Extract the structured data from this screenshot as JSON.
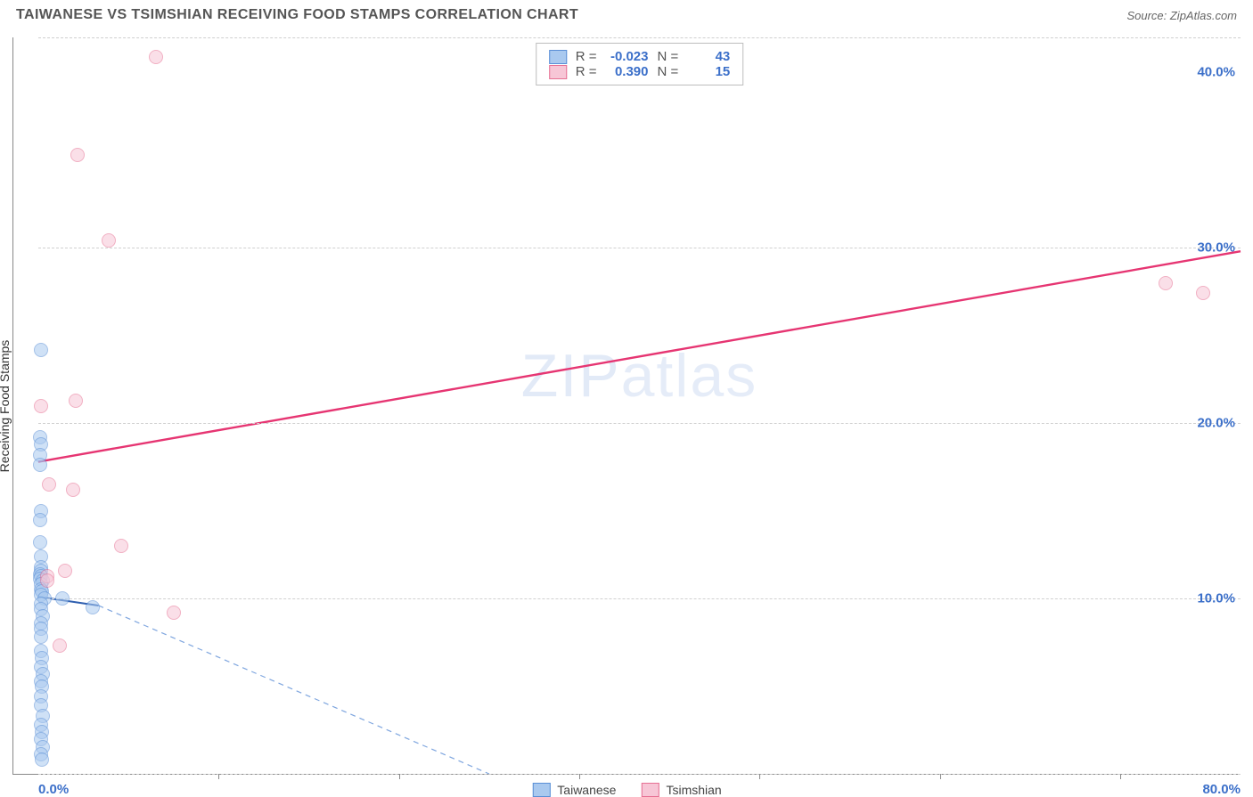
{
  "title": "TAIWANESE VS TSIMSHIAN RECEIVING FOOD STAMPS CORRELATION CHART",
  "source_label": "Source: ZipAtlas.com",
  "ylabel": "Receiving Food Stamps",
  "watermark": "ZIPatlas",
  "chart": {
    "type": "scatter",
    "xlim": [
      0,
      80
    ],
    "ylim": [
      0,
      42
    ],
    "xticks": [
      0,
      80
    ],
    "xtick_minor": [
      12,
      24,
      36,
      48,
      60,
      72
    ],
    "yticks": [
      10,
      20,
      30,
      40
    ],
    "ytick_labels": [
      "10.0%",
      "20.0%",
      "30.0%",
      "40.0%"
    ],
    "xtick_labels": [
      "0.0%",
      "80.0%"
    ],
    "grid_dashed_y": [
      0,
      10,
      20,
      30,
      42
    ],
    "background_color": "#ffffff",
    "grid_color": "#d0d0d0",
    "axis_color": "#888888",
    "label_color": "#3b6fc9",
    "marker_radius": 8,
    "marker_border_width": 1.2
  },
  "series": [
    {
      "name": "Taiwanese",
      "fill_color": "#a9c9ef",
      "fill_opacity": 0.55,
      "border_color": "#5a8fd6",
      "stats": {
        "R_label": "R =",
        "R": "-0.023",
        "N_label": "N =",
        "N": "43"
      },
      "regression": {
        "x1": 0,
        "y1": 10.1,
        "x2": 4,
        "y2": 9.6,
        "color": "#2f5fb0",
        "width": 2,
        "dash": "0"
      },
      "extrapolation": {
        "x1": 4,
        "y1": 9.6,
        "x2": 30,
        "y2": 0,
        "color": "#7fa6df",
        "width": 1.2,
        "dash": "6,5"
      },
      "points": [
        [
          0.2,
          24.2
        ],
        [
          0.1,
          19.2
        ],
        [
          0.2,
          18.8
        ],
        [
          0.1,
          18.2
        ],
        [
          0.1,
          17.6
        ],
        [
          0.2,
          15.0
        ],
        [
          0.1,
          14.5
        ],
        [
          0.1,
          13.2
        ],
        [
          0.2,
          12.4
        ],
        [
          0.15,
          11.8
        ],
        [
          0.2,
          11.6
        ],
        [
          0.1,
          11.4
        ],
        [
          0.2,
          11.3
        ],
        [
          0.1,
          11.1
        ],
        [
          0.3,
          11.0
        ],
        [
          0.2,
          10.8
        ],
        [
          0.15,
          10.5
        ],
        [
          0.25,
          10.4
        ],
        [
          0.2,
          10.2
        ],
        [
          0.4,
          10.0
        ],
        [
          0.2,
          9.7
        ],
        [
          0.15,
          9.4
        ],
        [
          0.3,
          9.0
        ],
        [
          1.6,
          10.0
        ],
        [
          3.6,
          9.5
        ],
        [
          0.2,
          8.6
        ],
        [
          0.15,
          8.3
        ],
        [
          0.2,
          7.8
        ],
        [
          0.15,
          7.0
        ],
        [
          0.25,
          6.6
        ],
        [
          0.2,
          6.1
        ],
        [
          0.3,
          5.7
        ],
        [
          0.15,
          5.3
        ],
        [
          0.25,
          5.0
        ],
        [
          0.2,
          4.4
        ],
        [
          0.2,
          3.9
        ],
        [
          0.3,
          3.3
        ],
        [
          0.2,
          2.8
        ],
        [
          0.25,
          2.4
        ],
        [
          0.2,
          2.0
        ],
        [
          0.3,
          1.5
        ],
        [
          0.2,
          1.1
        ],
        [
          0.25,
          0.8
        ]
      ]
    },
    {
      "name": "Tsimshian",
      "fill_color": "#f7c6d6",
      "fill_opacity": 0.55,
      "border_color": "#e67093",
      "stats": {
        "R_label": "R =",
        "R": "0.390",
        "N_label": "N =",
        "N": "15"
      },
      "regression": {
        "x1": 0,
        "y1": 17.8,
        "x2": 80,
        "y2": 29.8,
        "color": "#e63572",
        "width": 2.4,
        "dash": "0"
      },
      "points": [
        [
          7.8,
          40.9
        ],
        [
          2.6,
          35.3
        ],
        [
          4.7,
          30.4
        ],
        [
          2.5,
          21.3
        ],
        [
          2.3,
          16.2
        ],
        [
          5.5,
          13.0
        ],
        [
          1.8,
          11.6
        ],
        [
          0.6,
          11.3
        ],
        [
          0.6,
          11.0
        ],
        [
          9.0,
          9.2
        ],
        [
          1.4,
          7.3
        ],
        [
          0.2,
          21.0
        ],
        [
          75.0,
          28.0
        ],
        [
          77.5,
          27.4
        ],
        [
          0.7,
          16.5
        ]
      ]
    }
  ],
  "legend": [
    {
      "label": "Taiwanese",
      "fill": "#a9c9ef",
      "border": "#5a8fd6"
    },
    {
      "label": "Tsimshian",
      "fill": "#f7c6d6",
      "border": "#e67093"
    }
  ]
}
